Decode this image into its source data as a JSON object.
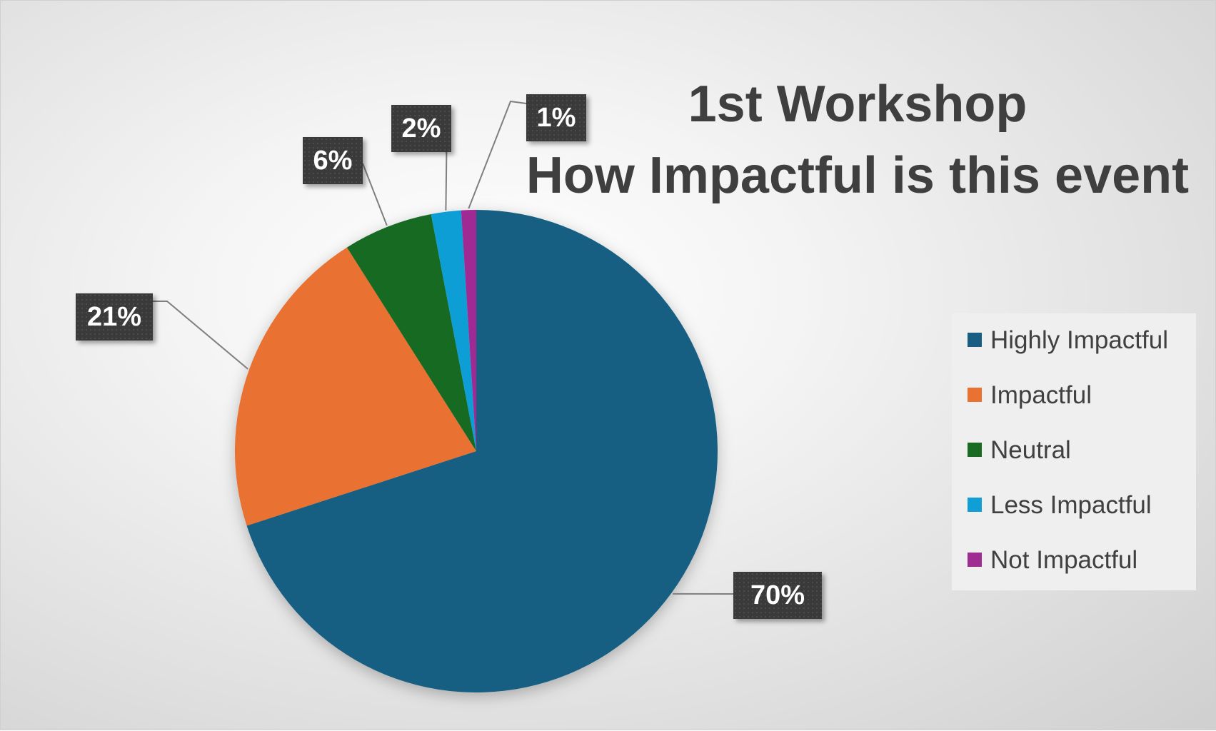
{
  "chart_data": {
    "type": "pie",
    "title_lines": [
      "1st Workshop",
      "How Impactful is this event"
    ],
    "categories": [
      "Highly Impactful",
      "Impactful",
      "Neutral",
      "Less Impactful",
      "Not Impactful"
    ],
    "values": [
      70,
      21,
      6,
      2,
      1
    ],
    "data_labels": [
      "70%",
      "21%",
      "6%",
      "2%",
      "1%"
    ],
    "colors": [
      "#175e82",
      "#e97132",
      "#196b24",
      "#0f9ed5",
      "#a02b93"
    ],
    "legend_position": "right"
  }
}
